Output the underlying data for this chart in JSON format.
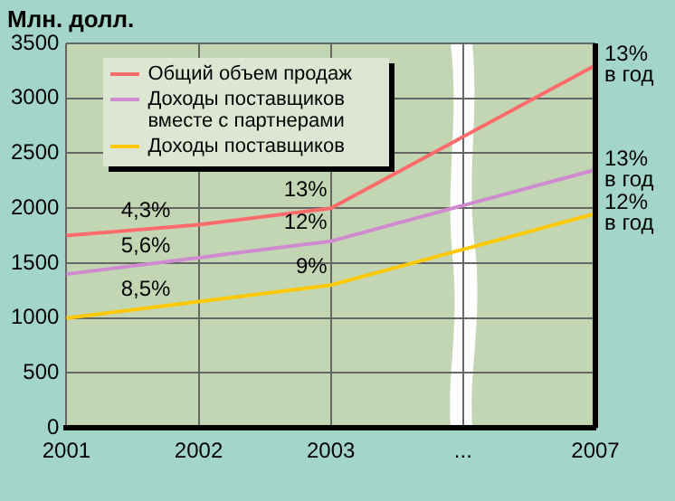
{
  "chart_data": {
    "type": "line",
    "ylabel": "Млн. долл.",
    "categories": [
      "2001",
      "2002",
      "2003",
      "...",
      "2007"
    ],
    "series": [
      {
        "name": "Общий объем продаж",
        "color": "#ff6a6a",
        "values": [
          1750,
          1850,
          2000,
          null,
          3300
        ]
      },
      {
        "name": "Доходы поставщиков вместе с партнерами",
        "color": "#d08ad0",
        "values": [
          1400,
          1550,
          1700,
          null,
          2350
        ]
      },
      {
        "name": "Доходы поставщиков",
        "color": "#ffc800",
        "values": [
          1000,
          1150,
          1300,
          null,
          1950
        ]
      }
    ],
    "ylim": [
      0,
      3500
    ],
    "yticks": [
      0,
      500,
      1000,
      1500,
      2000,
      2500,
      3000,
      3500
    ],
    "grid": true,
    "legend": "top left",
    "marker": "none",
    "annotations": [
      {
        "text": "4,3%",
        "y": 1810
      },
      {
        "text": "5,6%",
        "y": 1490
      },
      {
        "text": "8,5%",
        "y": 1090
      },
      {
        "text": "13%",
        "x": "2003",
        "y": 2000
      },
      {
        "text": "12%",
        "x": "2003",
        "y": 1700
      },
      {
        "text": "9%",
        "x": "2003",
        "y": 1300
      },
      {
        "text": "13%\nв год",
        "x": "2007",
        "y": 3300
      },
      {
        "text": "13%\nв год",
        "x": "2007",
        "y": 2350
      },
      {
        "text": "12%\nв год",
        "x": "2007",
        "y": 1950
      }
    ]
  }
}
